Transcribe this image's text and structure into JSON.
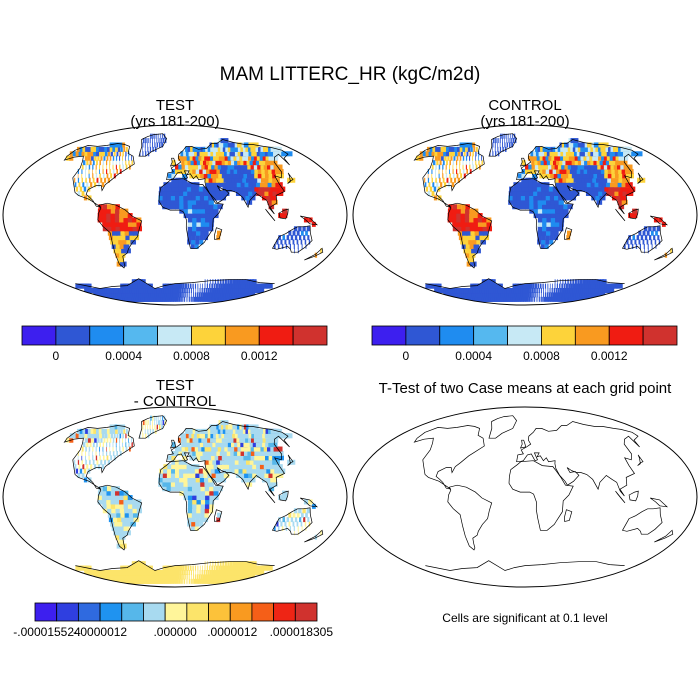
{
  "page": {
    "title": "MAM LITTERC_HR (kgC/m2d)"
  },
  "panels": {
    "test": {
      "title": "TEST",
      "subtitle": "(yrs 181-200)"
    },
    "control": {
      "title": "CONTROL",
      "subtitle": "(yrs 181-200)"
    },
    "diff": {
      "title": "TEST",
      "subtitle": "- CONTROL"
    },
    "ttest": {
      "title": "T-Test of two Case means at each grid point",
      "note": "Cells are significant at 0.1 level"
    }
  },
  "colors": {
    "levels_main": [
      "#3d1fef",
      "#2f57d4",
      "#1f8cf0",
      "#55b8ef",
      "#c7e9f5",
      "#fdd33a",
      "#f99a20",
      "#f01c12",
      "#d0322e"
    ],
    "levels_diff": [
      "#3d1fef",
      "#2f3fe0",
      "#2f6ae0",
      "#1f93f0",
      "#56b7ea",
      "#a8daf0",
      "#fff59a",
      "#fce46a",
      "#fcc23a",
      "#f99a20",
      "#f55f18",
      "#ee2515",
      "#d0322e"
    ],
    "ocean": "#ffffff",
    "coast": "#000000"
  },
  "chart_data": [
    {
      "type": "heatmap",
      "name": "test-map",
      "title": "TEST",
      "subtitle": "(yrs 181-200)",
      "projection": "robinson",
      "colorbar": {
        "labels": [
          "0",
          "0.0004",
          "0.0008",
          "0.0012"
        ],
        "ticks": [
          0.0,
          0.0004,
          0.0008,
          0.0012
        ],
        "bins": 9
      }
    },
    {
      "type": "heatmap",
      "name": "control-map",
      "title": "CONTROL",
      "subtitle": "(yrs 181-200)",
      "projection": "robinson",
      "colorbar": {
        "labels": [
          "0",
          "0.0004",
          "0.0008",
          "0.0012"
        ],
        "ticks": [
          0.0,
          0.0004,
          0.0008,
          0.0012
        ],
        "bins": 9
      }
    },
    {
      "type": "heatmap",
      "name": "difference-map",
      "title": "TEST",
      "subtitle": "- CONTROL",
      "projection": "robinson",
      "colorbar": {
        "labels": [
          "-.000015524",
          "-.0000012",
          ".000000",
          ".0000012",
          ".000018305"
        ],
        "bins": 13
      }
    },
    {
      "type": "heatmap",
      "name": "t-test-map",
      "title": "T-Test of two Case means at each grid point",
      "projection": "robinson",
      "note": "Cells are significant at 0.1 level",
      "significant_cells": 0
    }
  ]
}
